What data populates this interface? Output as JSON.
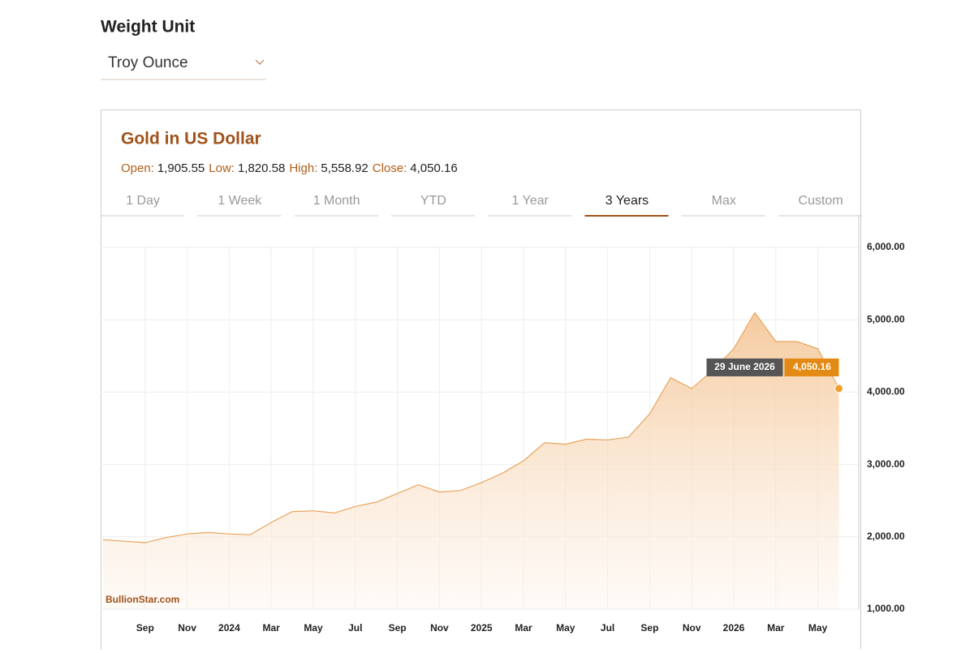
{
  "header": {
    "weight_label": "Weight Unit",
    "unit_select": "Troy Ounce"
  },
  "chart_data": {
    "type": "area",
    "title": "Gold in US Dollar",
    "ohlc": [
      {
        "label": "Open:",
        "value": "1,905.55"
      },
      {
        "label": "Low:",
        "value": "1,820.58"
      },
      {
        "label": "High:",
        "value": "5,558.92"
      },
      {
        "label": "Close:",
        "value": "4,050.16"
      }
    ],
    "tabs": [
      "1 Day",
      "1 Week",
      "1 Month",
      "YTD",
      "1 Year",
      "3 Years",
      "Max",
      "Custom"
    ],
    "active_tab": "3 Years",
    "watermark": "BullionStar.com",
    "categories": [
      null,
      null,
      "Sep",
      null,
      "Nov",
      null,
      "2024",
      null,
      "Mar",
      null,
      "May",
      null,
      "Jul",
      null,
      "Sep",
      null,
      "Nov",
      null,
      "2025",
      null,
      "Mar",
      null,
      "May",
      null,
      "Jul",
      null,
      "Sep",
      null,
      "Nov",
      null,
      "2026",
      null,
      "Mar",
      null,
      "May",
      null
    ],
    "values": [
      1960,
      1940,
      1920,
      1990,
      2040,
      2060,
      2040,
      2030,
      2200,
      2350,
      2360,
      2330,
      2420,
      2480,
      2600,
      2720,
      2620,
      2640,
      2750,
      2880,
      3050,
      3300,
      3280,
      3350,
      3340,
      3380,
      3700,
      4200,
      4050,
      4300,
      4600,
      5100,
      4700,
      4700,
      4600,
      4050.16
    ],
    "color": "#e9a55e",
    "ylim": [
      1000,
      6000
    ],
    "yticks": [
      {
        "value": 1000,
        "label": "1,000.00"
      },
      {
        "value": 2000,
        "label": "2,000.00"
      },
      {
        "value": 3000,
        "label": "3,000.00"
      },
      {
        "value": 4000,
        "label": "4,000.00"
      },
      {
        "value": 5000,
        "label": "5,000.00"
      },
      {
        "value": 6000,
        "label": "6,000.00"
      }
    ],
    "grid": true,
    "tooltip": {
      "date": "29 June 2026",
      "value_label": "4,050.16"
    }
  }
}
